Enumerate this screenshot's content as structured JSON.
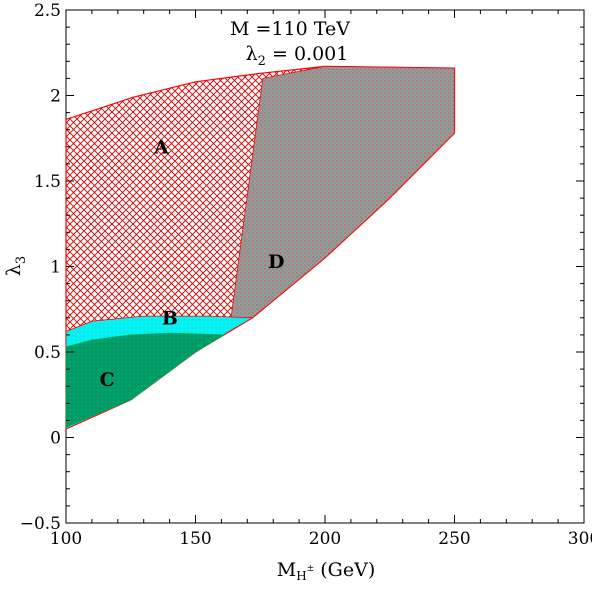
{
  "chart_data": {
    "type": "area",
    "title_line1": "M =110 TeV",
    "title_line2_symbol": "λ",
    "title_line2_sub": "2",
    "title_line2_rest": " = 0.001",
    "xlabel_main": "M",
    "xlabel_sub": "H",
    "xlabel_sup": "±",
    "xlabel_rest": " (GeV)",
    "ylabel_main": "λ",
    "ylabel_sub": "3",
    "xlim": [
      100,
      300
    ],
    "ylim": [
      -0.5,
      2.5
    ],
    "x_ticks": [
      100,
      150,
      200,
      250,
      300
    ],
    "y_ticks": [
      -0.5,
      0,
      0.5,
      1,
      1.5,
      2,
      2.5
    ],
    "x_tick_labels": [
      "100",
      "150",
      "200",
      "250",
      "300"
    ],
    "y_tick_labels": [
      "−0.5",
      "0",
      "0.5",
      "1",
      "1.5",
      "2",
      "2.5"
    ],
    "grid": false,
    "colors": {
      "A": "#cc0000",
      "B": "#00e5ee",
      "C": "#009966",
      "D": "#999999",
      "outline": "#ff0000"
    },
    "regions": [
      {
        "name": "A",
        "label_x": 134,
        "label_y": 1.66,
        "points": [
          [
            100,
            1.86
          ],
          [
            126,
            1.99
          ],
          [
            150,
            2.08
          ],
          [
            175,
            2.13
          ],
          [
            200,
            2.17
          ],
          [
            250,
            2.16
          ],
          [
            250,
            1.78
          ],
          [
            225,
            1.4
          ],
          [
            200,
            1.05
          ],
          [
            172,
            0.7
          ],
          [
            150,
            0.5
          ],
          [
            125,
            0.22
          ],
          [
            100,
            0.05
          ]
        ]
      },
      {
        "name": "D",
        "label_x": 178,
        "label_y": 0.99,
        "points": [
          [
            176,
            2.1
          ],
          [
            200,
            2.17
          ],
          [
            250,
            2.16
          ],
          [
            250,
            1.78
          ],
          [
            225,
            1.4
          ],
          [
            200,
            1.05
          ],
          [
            172,
            0.7
          ],
          [
            163,
            0.62
          ]
        ]
      },
      {
        "name": "B",
        "label_x": 137,
        "label_y": 0.66,
        "points": [
          [
            100,
            0.62
          ],
          [
            110,
            0.68
          ],
          [
            130,
            0.71
          ],
          [
            155,
            0.71
          ],
          [
            172,
            0.7
          ],
          [
            163,
            0.62
          ],
          [
            150,
            0.5
          ],
          [
            125,
            0.22
          ],
          [
            100,
            0.05
          ]
        ]
      },
      {
        "name": "C",
        "label_x": 113,
        "label_y": 0.3,
        "points": [
          [
            100,
            0.53
          ],
          [
            110,
            0.57
          ],
          [
            125,
            0.6
          ],
          [
            140,
            0.61
          ],
          [
            161,
            0.6
          ],
          [
            150,
            0.5
          ],
          [
            125,
            0.22
          ],
          [
            100,
            0.06
          ]
        ]
      }
    ]
  }
}
